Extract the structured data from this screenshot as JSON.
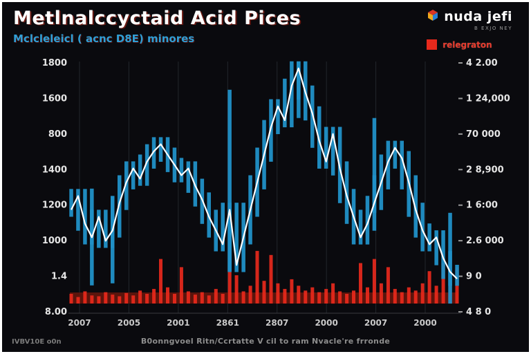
{
  "header": {
    "title": "Metlnalccyctaid Acid Pices",
    "subtitle": "Mclcleleicl ( acnc D8E) minores",
    "logo_text": "nuda jefi",
    "logo_sub": "B EXJO NEY",
    "legend_label": "relegraton"
  },
  "footer": {
    "left": "IVBV10E o0n",
    "caption": "B0onngvoel Ritn/Ccrtatte V cil to ram Nvacle're frronde"
  },
  "chart_data": {
    "type": "candlestick",
    "title": "Metlnalccyctaid Acid Pices",
    "subtitle": "Mclcleleicl ( acnc D8E) minores",
    "legend": [
      "relegraton"
    ],
    "left_axis_labels": [
      "1800",
      "1600",
      "800",
      "1400",
      "1200",
      "1000",
      "1.4",
      "8.00"
    ],
    "right_axis_labels": [
      "4 2.00",
      "1 24,000",
      "70 000",
      "2 8,900",
      "1 6:00",
      "2.6 000",
      "9 0",
      "4 8 0"
    ],
    "x_labels": [
      "2007",
      "2005",
      "2001",
      "2861",
      "2807",
      "2000",
      "2007",
      "2000"
    ],
    "ylim": [
      700,
      1900
    ],
    "grid": "vertical-only",
    "legend_position": "top-right",
    "price": [
      1165,
      1233,
      1096,
      1028,
      1130,
      1011,
      1062,
      1199,
      1301,
      1370,
      1319,
      1404,
      1455,
      1490,
      1438,
      1387,
      1336,
      1370,
      1284,
      1216,
      1130,
      1062,
      994,
      1165,
      891,
      1028,
      1165,
      1301,
      1438,
      1575,
      1678,
      1609,
      1780,
      1866,
      1746,
      1643,
      1507,
      1404,
      1541,
      1370,
      1233,
      1130,
      1028,
      1096,
      1199,
      1301,
      1404,
      1472,
      1421,
      1301,
      1165,
      1062,
      994,
      1028,
      925,
      857,
      823
    ],
    "volume": [
      12,
      8,
      15,
      10,
      9,
      14,
      11,
      9,
      13,
      10,
      16,
      12,
      18,
      55,
      20,
      12,
      45,
      15,
      11,
      14,
      10,
      18,
      12,
      70,
      35,
      15,
      22,
      65,
      28,
      60,
      25,
      18,
      30,
      22,
      16,
      20,
      14,
      18,
      25,
      15,
      12,
      16,
      50,
      20,
      55,
      25,
      45,
      18,
      14,
      20,
      16,
      25,
      40,
      22,
      50,
      60,
      45
    ],
    "wicks": [
      {
        "i": 3,
        "lo": 790,
        "hi": 1270
      },
      {
        "i": 6,
        "lo": 800,
        "hi": 1230
      },
      {
        "i": 23,
        "lo": 860,
        "hi": 1760
      },
      {
        "i": 33,
        "lo": 1620,
        "hi": 1900
      },
      {
        "i": 44,
        "lo": 1150,
        "hi": 1620
      },
      {
        "i": 55,
        "lo": 700,
        "hi": 1150
      }
    ],
    "colors": {
      "background": "#0a0a0e",
      "price_bar": "#2191c8",
      "price_line": "#ffffff",
      "volume": "#e8291c",
      "volume_band": "#64150c",
      "grid": "#23262c",
      "axis_text": "#e6e6e6",
      "accent_blue": "#2f9fd6",
      "accent_red": "#e8291c"
    }
  }
}
